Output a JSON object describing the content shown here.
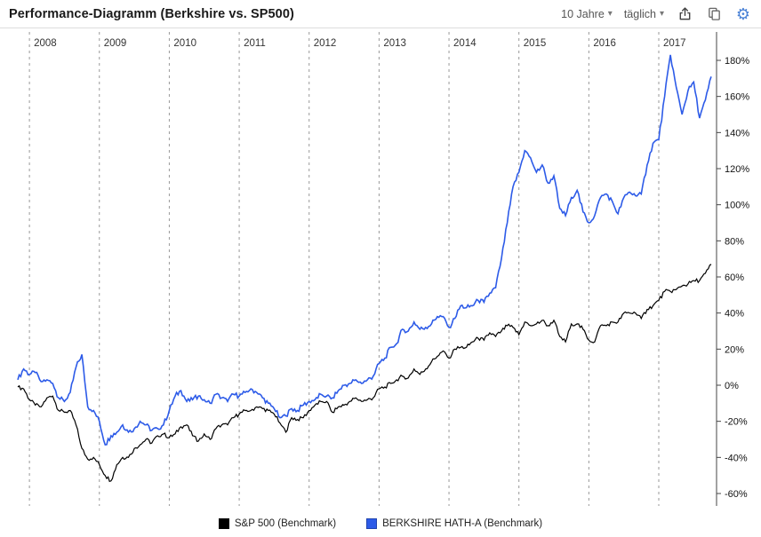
{
  "header": {
    "title": "Performance-Diagramm (Berkshire vs. SP500)",
    "range_label": "10 Jahre",
    "interval_label": "täglich"
  },
  "icons": {
    "dropdown_caret_glyph": "▾",
    "export": "export-icon",
    "copy": "copy-icon",
    "settings": "gear-icon",
    "gear_glyph": "⚙"
  },
  "colors": {
    "series_sp500": "#000000",
    "series_berkshire": "#2d5be8",
    "gear_blue": "#4a82d6",
    "gridline": "#999999",
    "axis": "#444444"
  },
  "chart_data": {
    "type": "line",
    "title": "Performance-Diagramm (Berkshire vs. SP500)",
    "x_unit": "month",
    "first_month": {
      "year": 2007,
      "month": 11
    },
    "last_month": {
      "year": 2017,
      "month": 10
    },
    "year_gridlines": [
      2008,
      2009,
      2010,
      2011,
      2012,
      2013,
      2014,
      2015,
      2016,
      2017
    ],
    "ylim": [
      -60,
      180
    ],
    "ytick_step": 20,
    "ytick_suffix": "%",
    "grid": "dashed-vertical-per-year",
    "legend_position": "bottom-center",
    "series": [
      {
        "name": "S&P 500",
        "legend_label": "S&P 500  (Benchmark)",
        "color": "#000000",
        "values": [
          -1,
          -2,
          -8,
          -11,
          -12,
          -7,
          -6,
          -14,
          -15,
          -14,
          -22,
          -35,
          -41,
          -40,
          -44,
          -50,
          -53,
          -44,
          -40,
          -40,
          -35,
          -33,
          -30,
          -32,
          -28,
          -27,
          -29,
          -27,
          -23,
          -22,
          -28,
          -31,
          -27,
          -30,
          -24,
          -22,
          -22,
          -18,
          -16,
          -14,
          -14,
          -12,
          -13,
          -14,
          -16,
          -21,
          -26,
          -18,
          -19,
          -18,
          -14,
          -11,
          -9,
          -9,
          -15,
          -12,
          -11,
          -9,
          -7,
          -9,
          -8,
          -7,
          -2,
          -1,
          1,
          3,
          5,
          4,
          9,
          6,
          9,
          13,
          16,
          19,
          15,
          20,
          21,
          21,
          24,
          26,
          25,
          29,
          27,
          30,
          33,
          32,
          28,
          35,
          33,
          34,
          36,
          33,
          36,
          27,
          24,
          34,
          34,
          31,
          25,
          24,
          33,
          33,
          35,
          35,
          40,
          40,
          40,
          37,
          42,
          44,
          47,
          52,
          52,
          53,
          55,
          56,
          58,
          58,
          62,
          67
        ]
      },
      {
        "name": "BERKSHIRE HATH-A",
        "legend_label": "BERKSHIRE HATH-A  (Benchmark)",
        "color": "#2d5be8",
        "values": [
          3,
          9,
          6,
          7,
          2,
          3,
          1,
          -7,
          -9,
          -4,
          10,
          17,
          -12,
          -14,
          -20,
          -33,
          -28,
          -26,
          -22,
          -26,
          -24,
          -20,
          -22,
          -25,
          -24,
          -22,
          -14,
          -6,
          -3,
          -9,
          -8,
          -6,
          -8,
          -10,
          -5,
          -7,
          -9,
          -5,
          -6,
          -4,
          -2,
          -4,
          -7,
          -10,
          -13,
          -18,
          -17,
          -13,
          -14,
          -11,
          -9,
          -8,
          -5,
          -6,
          -7,
          -3,
          0,
          1,
          3,
          1,
          3,
          5,
          12,
          15,
          21,
          23,
          31,
          30,
          35,
          31,
          32,
          34,
          38,
          38,
          32,
          37,
          44,
          43,
          44,
          47,
          46,
          51,
          54,
          70,
          90,
          110,
          118,
          130,
          126,
          118,
          122,
          112,
          116,
          98,
          94,
          104,
          108,
          96,
          90,
          94,
          104,
          106,
          102,
          95,
          104,
          107,
          105,
          106,
          122,
          134,
          136,
          160,
          183,
          165,
          150,
          163,
          168,
          148,
          158,
          171
        ]
      }
    ]
  }
}
